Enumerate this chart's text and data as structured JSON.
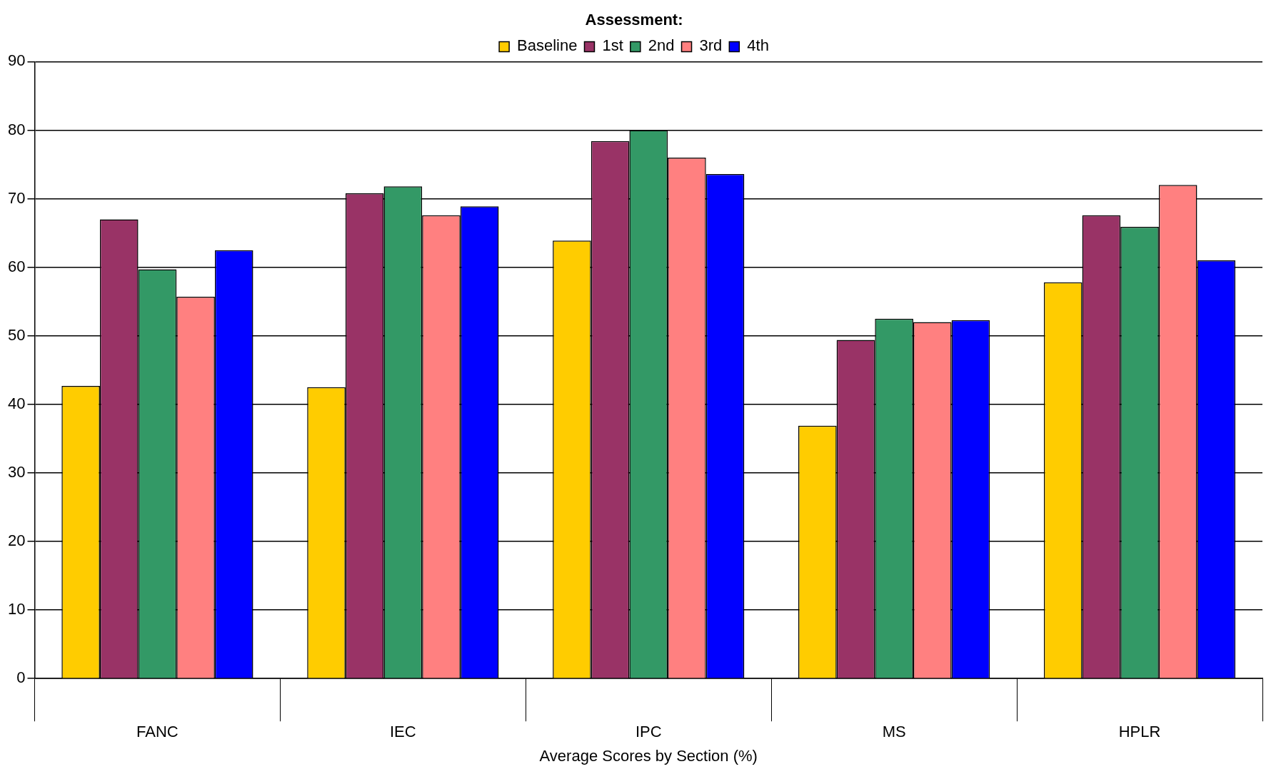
{
  "chart_data": {
    "type": "bar",
    "xlabel": "Average Scores by Section (%)",
    "legend_title": "Assessment:",
    "legend": "top",
    "grid": "y",
    "categories": [
      "FANC",
      "IEC",
      "IPC",
      "MS",
      "HPLR"
    ],
    "ylim": [
      0,
      90
    ],
    "yticks": [
      0,
      10,
      20,
      30,
      40,
      50,
      60,
      70,
      80,
      90
    ],
    "series": [
      {
        "name": "Baseline",
        "color": "#ffcc00",
        "values": [
          42.7,
          42.5,
          63.9,
          36.9,
          57.8
        ]
      },
      {
        "name": "1st",
        "color": "#993366",
        "values": [
          67.0,
          70.8,
          78.4,
          49.4,
          67.6
        ]
      },
      {
        "name": "2nd",
        "color": "#339966",
        "values": [
          59.7,
          71.8,
          80.0,
          52.5,
          65.9
        ]
      },
      {
        "name": "3rd",
        "color": "#ff8080",
        "values": [
          55.7,
          67.6,
          76.0,
          52.0,
          72.0
        ]
      },
      {
        "name": "4th",
        "color": "#0000ff",
        "values": [
          62.5,
          68.9,
          73.6,
          52.3,
          61.0
        ]
      }
    ]
  }
}
